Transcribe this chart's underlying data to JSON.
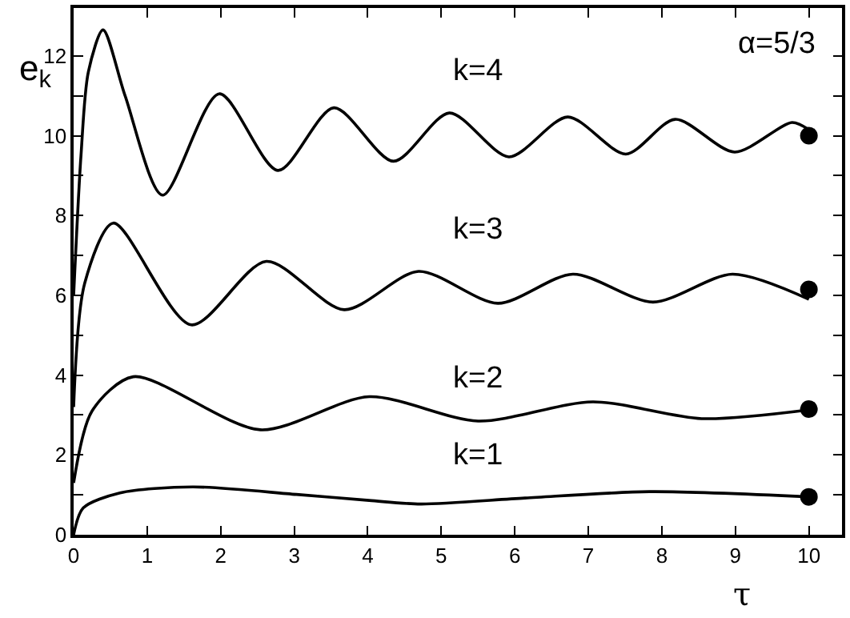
{
  "chart_data": {
    "type": "line",
    "xlabel": "τ",
    "ylabel": "e$_{k}$",
    "annotations": [
      "α=5/3"
    ],
    "xlim": [
      0,
      10.45
    ],
    "ylim": [
      0,
      13.2
    ],
    "xticks": [
      0,
      1,
      2,
      3,
      4,
      5,
      6,
      7,
      8,
      9,
      10
    ],
    "yticks": [
      0,
      {
        "value": 1,
        "label": null
      },
      2,
      {
        "value": 3,
        "label": null
      },
      4,
      {
        "value": 5,
        "label": null
      },
      6,
      {
        "value": 7,
        "label": null
      },
      8,
      {
        "value": 9,
        "label": null
      },
      10,
      {
        "value": 11,
        "label": null
      },
      12
    ],
    "legend": false,
    "marker": "none",
    "line_style": "solid",
    "series": [
      {
        "name": "k=4",
        "color": "#000000",
        "x": [
          0,
          0.1,
          0.2,
          0.4,
          0.7,
          1.21,
          1.98,
          2.78,
          3.54,
          4.35,
          5.11,
          5.92,
          6.72,
          7.51,
          8.18,
          8.99,
          9.77,
          10
        ],
        "values": [
          6.0,
          9.5,
          11.6,
          12.65,
          11.0,
          8.51,
          11.05,
          9.13,
          10.7,
          9.36,
          10.57,
          9.47,
          10.47,
          9.54,
          10.41,
          9.59,
          10.33,
          10.15
        ]
      },
      {
        "name": "k=3",
        "color": "#000000",
        "x": [
          0,
          0.15,
          0.54,
          1.6,
          2.62,
          3.68,
          4.69,
          5.77,
          6.79,
          7.88,
          8.96,
          10
        ],
        "values": [
          3.2,
          6.3,
          7.81,
          5.26,
          6.85,
          5.64,
          6.6,
          5.8,
          6.53,
          5.83,
          6.53,
          5.9
        ]
      },
      {
        "name": "k=2",
        "color": "#000000",
        "x": [
          0,
          0.25,
          0.81,
          2.54,
          4.02,
          5.5,
          7.06,
          8.54,
          10
        ],
        "values": [
          1.3,
          3.1,
          3.96,
          2.63,
          3.46,
          2.85,
          3.33,
          2.91,
          3.13
        ]
      },
      {
        "name": "k=1",
        "color": "#000000",
        "x": [
          0,
          0.13,
          0.63,
          1.62,
          3.03,
          4.02,
          4.72,
          6.14,
          7.83,
          10
        ],
        "values": [
          0,
          0.67,
          1.05,
          1.2,
          1.01,
          0.86,
          0.77,
          0.92,
          1.08,
          0.95
        ]
      },
      {
        "type": "scatter",
        "marker": "circle",
        "color": "#000000",
        "x": [
          10,
          10,
          10,
          10
        ],
        "values": [
          10.0,
          6.15,
          3.15,
          0.95
        ]
      }
    ]
  }
}
